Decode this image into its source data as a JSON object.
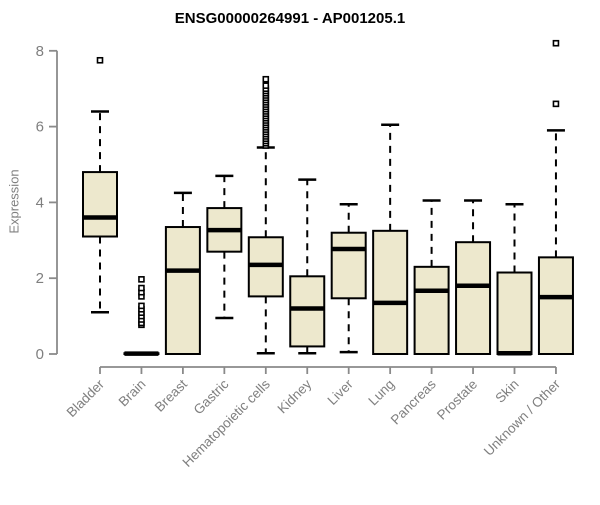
{
  "chart_data": {
    "type": "boxplot",
    "title": "ENSG00000264991 - AP001205.1",
    "ylabel": "Expression",
    "ylim": [
      0,
      8.3
    ],
    "yticks": [
      0,
      2,
      4,
      6,
      8
    ],
    "grid": false,
    "legend": "none",
    "categories": [
      "Bladder",
      "Brain",
      "Breast",
      "Gastric",
      "Hematopoietic cells",
      "Kidney",
      "Liver",
      "Lung",
      "Pancreas",
      "Prostate",
      "Skin",
      "Unknown / Other"
    ],
    "boxes": [
      {
        "category": "Bladder",
        "min": 1.1,
        "q1": 3.1,
        "median": 3.6,
        "q3": 4.8,
        "max": 6.4,
        "outliers": [
          7.75
        ]
      },
      {
        "category": "Brain",
        "min": 0,
        "q1": 0,
        "median": 0.01,
        "q3": 0.02,
        "max": 0.02,
        "outliers": [
          0.77,
          0.82,
          0.91,
          1.0,
          1.09,
          1.18,
          1.27,
          1.52,
          1.63,
          1.74,
          1.97
        ]
      },
      {
        "category": "Breast",
        "min": 0,
        "q1": 0,
        "median": 2.2,
        "q3": 3.35,
        "max": 4.25,
        "outliers": []
      },
      {
        "category": "Gastric",
        "min": 0.95,
        "q1": 2.7,
        "median": 3.27,
        "q3": 3.85,
        "max": 4.7,
        "outliers": []
      },
      {
        "category": "Hematopoietic cells",
        "min": 0.02,
        "q1": 1.52,
        "median": 2.35,
        "q3": 3.08,
        "max": 5.45,
        "outliers": [
          5.5,
          5.56,
          5.62,
          5.68,
          5.74,
          5.8,
          5.86,
          5.92,
          5.98,
          6.04,
          6.1,
          6.16,
          6.22,
          6.28,
          6.34,
          6.4,
          6.46,
          6.52,
          6.58,
          6.64,
          6.7,
          6.76,
          6.82,
          6.88,
          6.94,
          7.0,
          7.08,
          7.25
        ]
      },
      {
        "category": "Kidney",
        "min": 0.02,
        "q1": 0.2,
        "median": 1.2,
        "q3": 2.05,
        "max": 4.6,
        "outliers": []
      },
      {
        "category": "Liver",
        "min": 0.05,
        "q1": 1.47,
        "median": 2.77,
        "q3": 3.2,
        "max": 3.95,
        "outliers": []
      },
      {
        "category": "Lung",
        "min": 0,
        "q1": 0,
        "median": 1.35,
        "q3": 3.25,
        "max": 6.05,
        "outliers": []
      },
      {
        "category": "Pancreas",
        "min": 0,
        "q1": 0,
        "median": 1.67,
        "q3": 2.3,
        "max": 4.05,
        "outliers": []
      },
      {
        "category": "Prostate",
        "min": 0,
        "q1": 0,
        "median": 1.8,
        "q3": 2.95,
        "max": 4.05,
        "outliers": []
      },
      {
        "category": "Skin",
        "min": 0,
        "q1": 0,
        "median": 0.02,
        "q3": 2.15,
        "max": 3.95,
        "outliers": []
      },
      {
        "category": "Unknown / Other",
        "min": 0,
        "q1": 0,
        "median": 1.5,
        "q3": 2.55,
        "max": 5.9,
        "outliers": [
          6.6,
          8.2
        ]
      }
    ],
    "colors": {
      "box_fill": "#EDE8CD",
      "box_stroke": "#000000",
      "median": "#000000",
      "whisker": "#000000",
      "axis": "#8A8A8A",
      "tick_text": "#7F7F7F",
      "title_text": "#000000"
    }
  }
}
